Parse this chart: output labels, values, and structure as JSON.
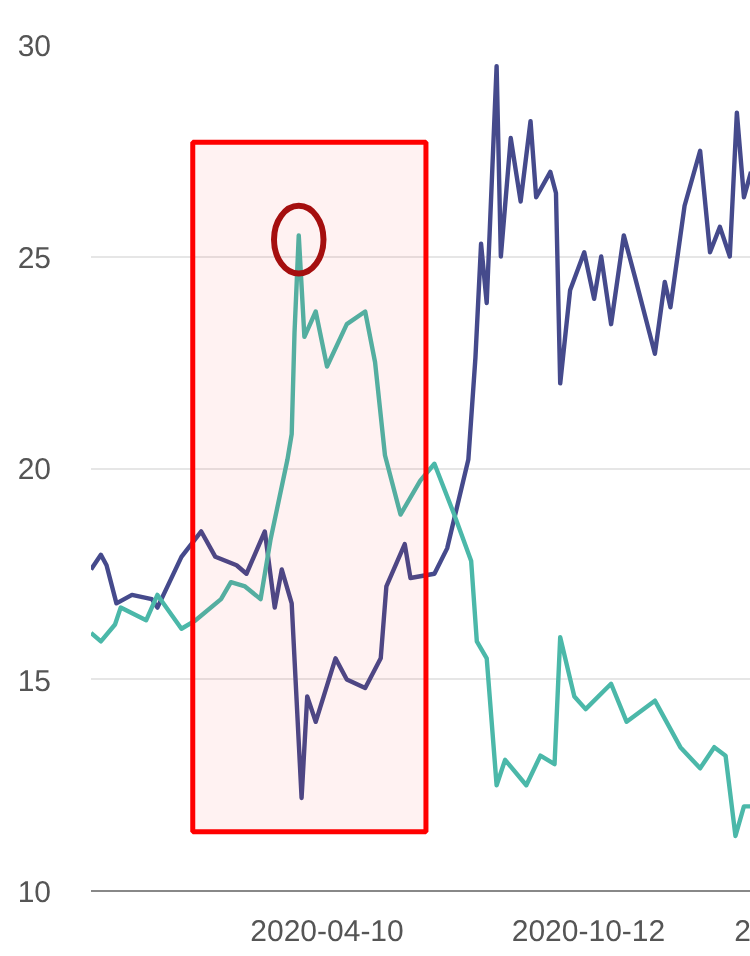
{
  "chart_data": {
    "type": "line",
    "xlim": [
      "2019-10-26",
      "2021-02-04"
    ],
    "xticks": [
      "2020-04-10",
      "2020-10-12",
      {
        "value": "2021-02-01",
        "label": "2"
      }
    ],
    "ylim": [
      10,
      30
    ],
    "yticks": [
      10,
      15,
      20,
      25,
      30
    ],
    "grid": "y",
    "bands": [
      {
        "axis": "x",
        "from": "2020-01-06",
        "to": "2020-06-19",
        "color": "#ff0000"
      }
    ],
    "series": [
      {
        "color": "#454a8c",
        "x": [
          "2019-10-26",
          "2019-11-02",
          "2019-11-06",
          "2019-11-13",
          "2019-11-24",
          "2019-12-08",
          "2019-12-12",
          "2019-12-29",
          "2020-01-12",
          "2020-01-22",
          "2020-02-06",
          "2020-02-13",
          "2020-02-26",
          "2020-03-04",
          "2020-03-09",
          "2020-03-16",
          "2020-03-23",
          "2020-03-27",
          "2020-04-02",
          "2020-04-16",
          "2020-04-24",
          "2020-05-07",
          "2020-05-18",
          "2020-05-22",
          "2020-06-04",
          "2020-06-08",
          "2020-06-25",
          "2020-07-04",
          "2020-07-19",
          "2020-07-24",
          "2020-07-28",
          "2020-08-01",
          "2020-08-08",
          "2020-08-11",
          "2020-08-18",
          "2020-08-25",
          "2020-09-01",
          "2020-09-05",
          "2020-09-15",
          "2020-09-19",
          "2020-09-22",
          "2020-09-29",
          "2020-10-09",
          "2020-10-16",
          "2020-10-21",
          "2020-10-28",
          "2020-11-06",
          "2020-11-14",
          "2020-11-28",
          "2020-12-05",
          "2020-12-09",
          "2020-12-19",
          "2020-12-30",
          "2021-01-06",
          "2021-01-13",
          "2021-01-20",
          "2021-01-25",
          "2021-01-30",
          "2021-02-04"
        ],
        "values": [
          17.6,
          17.95,
          17.7,
          16.8,
          17.0,
          16.9,
          16.7,
          17.9,
          18.5,
          17.9,
          17.7,
          17.5,
          18.5,
          16.7,
          17.6,
          16.8,
          12.2,
          14.6,
          14.0,
          15.5,
          15.0,
          14.8,
          15.5,
          17.2,
          18.2,
          17.4,
          17.5,
          18.1,
          20.2,
          22.6,
          25.3,
          23.9,
          29.5,
          25.0,
          27.8,
          26.3,
          28.2,
          26.4,
          27.0,
          26.5,
          22.0,
          24.2,
          25.1,
          24.0,
          25.0,
          23.4,
          25.5,
          24.5,
          22.7,
          24.4,
          23.8,
          26.2,
          27.5,
          25.1,
          25.7,
          25.0,
          28.4,
          26.4,
          27.0
        ]
      },
      {
        "color": "#4bb8a9",
        "x": [
          "2019-10-26",
          "2019-11-02",
          "2019-11-12",
          "2019-11-16",
          "2019-12-04",
          "2019-12-12",
          "2019-12-29",
          "2020-01-08",
          "2020-01-26",
          "2020-02-02",
          "2020-02-12",
          "2020-02-23",
          "2020-03-01",
          "2020-03-13",
          "2020-03-16",
          "2020-03-18",
          "2020-03-21",
          "2020-03-25",
          "2020-04-02",
          "2020-04-10",
          "2020-04-24",
          "2020-05-07",
          "2020-05-14",
          "2020-05-21",
          "2020-06-01",
          "2020-06-15",
          "2020-06-25",
          "2020-07-09",
          "2020-07-21",
          "2020-07-25",
          "2020-08-01",
          "2020-08-08",
          "2020-08-14",
          "2020-08-29",
          "2020-09-08",
          "2020-09-18",
          "2020-09-22",
          "2020-10-02",
          "2020-10-10",
          "2020-10-28",
          "2020-11-08",
          "2020-11-28",
          "2020-12-16",
          "2020-12-30",
          "2021-01-09",
          "2021-01-17",
          "2021-01-24",
          "2021-01-30",
          "2021-02-04"
        ],
        "values": [
          16.1,
          15.9,
          16.3,
          16.7,
          16.4,
          17.0,
          16.2,
          16.4,
          16.9,
          17.3,
          17.2,
          16.9,
          18.3,
          20.2,
          20.8,
          23.2,
          25.5,
          23.1,
          23.7,
          22.4,
          23.4,
          23.7,
          22.5,
          20.3,
          18.9,
          19.7,
          20.1,
          18.9,
          17.8,
          15.9,
          15.5,
          12.5,
          13.1,
          12.5,
          13.2,
          13.0,
          16.0,
          14.6,
          14.3,
          14.9,
          14.0,
          14.5,
          13.4,
          12.9,
          13.4,
          13.2,
          11.3,
          12.0,
          12.0
        ]
      }
    ]
  }
}
